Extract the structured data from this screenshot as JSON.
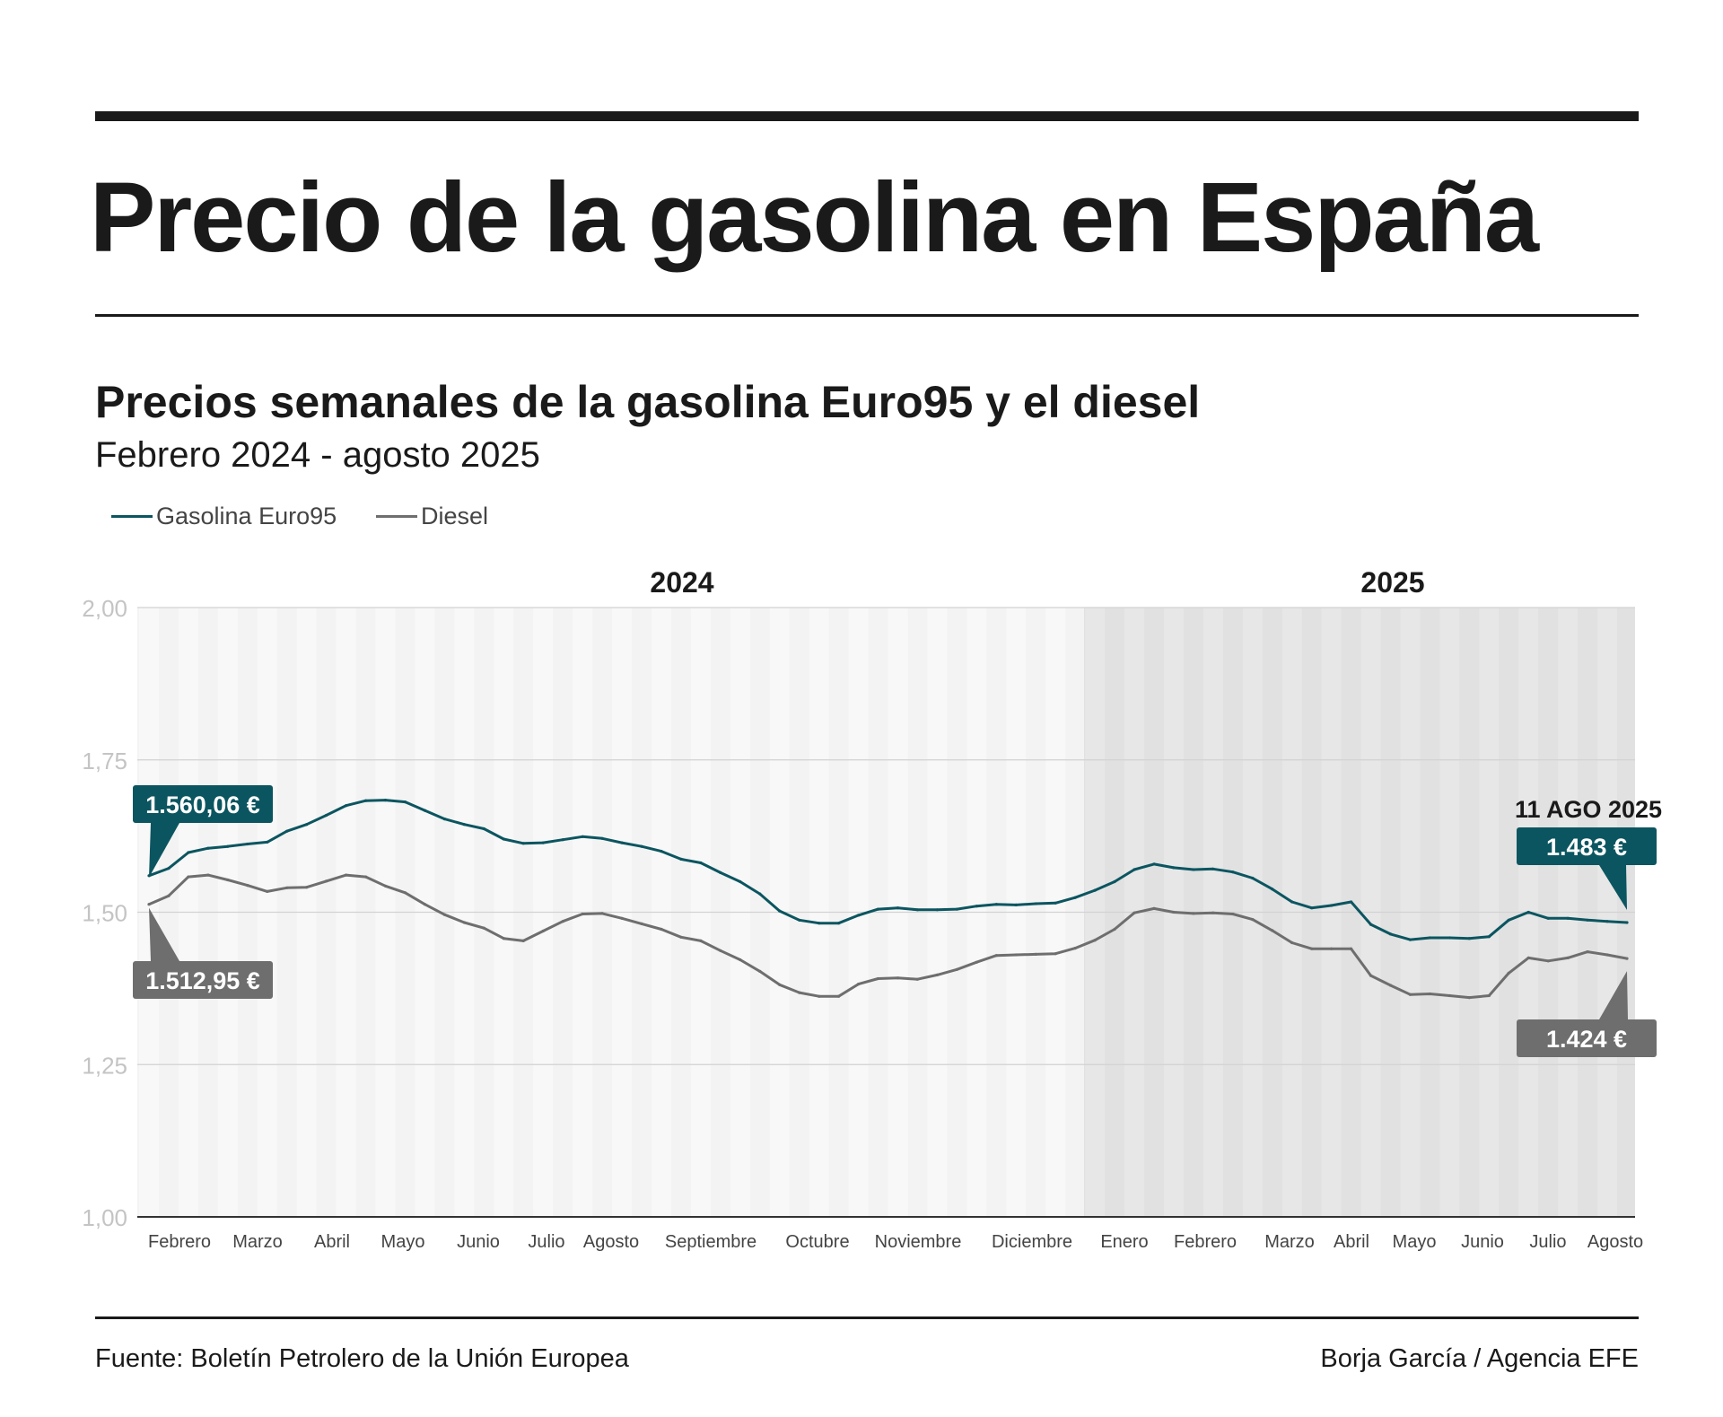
{
  "header": {
    "title": "Precio de la gasolina en España",
    "subtitle": "Precios semanales de la gasolina Euro95 y el diesel",
    "period": "Febrero 2024 - agosto 2025"
  },
  "footer": {
    "source": "Fuente: Boletín Petrolero de la Unión Europea",
    "credit": "Borja García / Agencia EFE"
  },
  "colors": {
    "gasolina": "#0b5560",
    "diesel": "#6e6e6e",
    "band_2024": "#f3f3f3",
    "band_2025": "#e1e1e1"
  },
  "chart_data": {
    "type": "line",
    "ylim": [
      1.0,
      2.0
    ],
    "y_ticks": [
      "1,00",
      "1,25",
      "1,50",
      "1,75",
      "2,00"
    ],
    "grid": true,
    "legend": "top-left",
    "years": [
      "2024",
      "2025"
    ],
    "months": [
      "Febrero",
      "Marzo",
      "Abril",
      "Mayo",
      "Junio",
      "Julio",
      "Agosto",
      "Septiembre",
      "Octubre",
      "Noviembre",
      "Diciembre",
      "Enero",
      "Febrero",
      "Marzo",
      "Abril",
      "Mayo",
      "Junio",
      "Julio",
      "Agosto"
    ],
    "series": [
      {
        "name": "Gasolina Euro95",
        "values": [
          1.56,
          1.572,
          1.598,
          1.605,
          1.608,
          1.612,
          1.615,
          1.633,
          1.644,
          1.659,
          1.675,
          1.683,
          1.684,
          1.681,
          1.667,
          1.653,
          1.644,
          1.637,
          1.62,
          1.613,
          1.614,
          1.619,
          1.624,
          1.621,
          1.614,
          1.608,
          1.6,
          1.587,
          1.581,
          1.565,
          1.55,
          1.53,
          1.502,
          1.487,
          1.482,
          1.482,
          1.495,
          1.505,
          1.507,
          1.504,
          1.504,
          1.505,
          1.51,
          1.513,
          1.512,
          1.514,
          1.515,
          1.524,
          1.536,
          1.55,
          1.57,
          1.579,
          1.573,
          1.57,
          1.571,
          1.566,
          1.556,
          1.538,
          1.517,
          1.507,
          1.511,
          1.517,
          1.48,
          1.464,
          1.455,
          1.458,
          1.458,
          1.457,
          1.46,
          1.487,
          1.5,
          1.49,
          1.49,
          1.487,
          1.485,
          1.483
        ]
      },
      {
        "name": "Diesel",
        "values": [
          1.513,
          1.527,
          1.558,
          1.561,
          1.553,
          1.544,
          1.534,
          1.54,
          1.541,
          1.551,
          1.561,
          1.558,
          1.543,
          1.532,
          1.513,
          1.496,
          1.483,
          1.474,
          1.457,
          1.453,
          1.469,
          1.485,
          1.497,
          1.498,
          1.49,
          1.481,
          1.472,
          1.459,
          1.453,
          1.437,
          1.422,
          1.403,
          1.381,
          1.368,
          1.362,
          1.362,
          1.382,
          1.391,
          1.392,
          1.39,
          1.397,
          1.406,
          1.418,
          1.429,
          1.43,
          1.431,
          1.432,
          1.441,
          1.454,
          1.472,
          1.499,
          1.506,
          1.5,
          1.498,
          1.499,
          1.497,
          1.488,
          1.47,
          1.45,
          1.44,
          1.44,
          1.44,
          1.396,
          1.38,
          1.365,
          1.366,
          1.363,
          1.36,
          1.363,
          1.4,
          1.425,
          1.42,
          1.425,
          1.435,
          1.43,
          1.424
        ]
      }
    ],
    "annotations": {
      "gasolina_start": "1.560,06 €",
      "diesel_start": "1.512,95 €",
      "end_date": "11 AGO 2025",
      "gasolina_end": "1.483 €",
      "diesel_end": "1.424 €"
    }
  }
}
